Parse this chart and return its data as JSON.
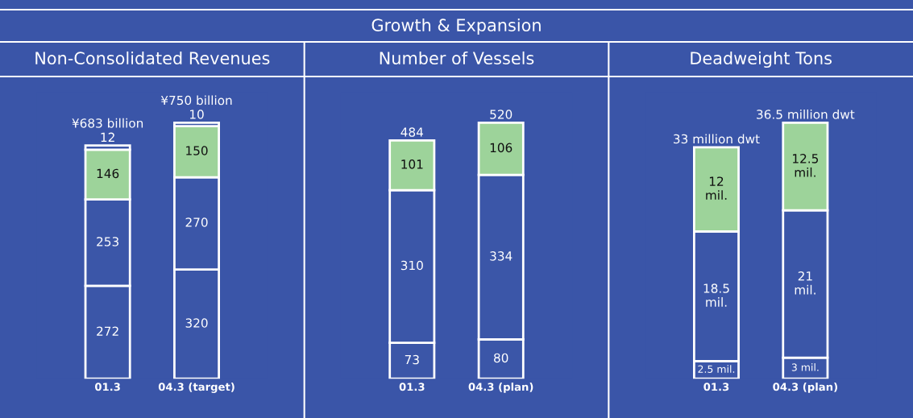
{
  "chart_data": [
    {
      "type": "bar",
      "title": "Non-Consolidated Revenues",
      "annotations": [
        "Growth & Expansion"
      ],
      "categories": [
        "01.3",
        "04.3 (target)"
      ],
      "stacked": true,
      "data_labels": true,
      "tick_labels": "x",
      "totals": [
        "¥683 billion",
        "¥750 billion"
      ],
      "series": [
        {
          "color": "#3b56a8",
          "values": [
            272,
            320
          ]
        },
        {
          "color": "#3b56a8",
          "values": [
            253,
            270
          ]
        },
        {
          "color": "#9dd39a",
          "values": [
            146,
            150
          ]
        },
        {
          "color": "#3b56a8",
          "values": [
            12,
            10
          ]
        }
      ]
    },
    {
      "type": "bar",
      "title": "Number of Vessels",
      "categories": [
        "01.3",
        "04.3 (plan)"
      ],
      "stacked": true,
      "data_labels": true,
      "tick_labels": "x",
      "totals": [
        "484",
        "520"
      ],
      "series": [
        {
          "color": "#3b56a8",
          "values": [
            73,
            80
          ]
        },
        {
          "color": "#3b56a8",
          "values": [
            310,
            334
          ]
        },
        {
          "color": "#9dd39a",
          "values": [
            101,
            106
          ]
        }
      ]
    },
    {
      "type": "bar",
      "title": "Deadweight Tons",
      "categories": [
        "01.3",
        "04.3 (plan)"
      ],
      "stacked": true,
      "tick_labels": "x",
      "totals": [
        "33 million dwt",
        "36.5 million dwt"
      ],
      "series": [
        {
          "color": "#3b56a8",
          "values": [
            2.5,
            3
          ],
          "value_labels": [
            "2.5 mil.",
            "3 mil."
          ]
        },
        {
          "color": "#3b56a8",
          "values": [
            18.5,
            21
          ],
          "value_labels": [
            "18.5\nmil.",
            "21\nmil."
          ]
        },
        {
          "color": "#9dd39a",
          "values": [
            12,
            12.5
          ],
          "value_labels": [
            "12\nmil.",
            "12.5\nmil."
          ]
        }
      ]
    }
  ]
}
